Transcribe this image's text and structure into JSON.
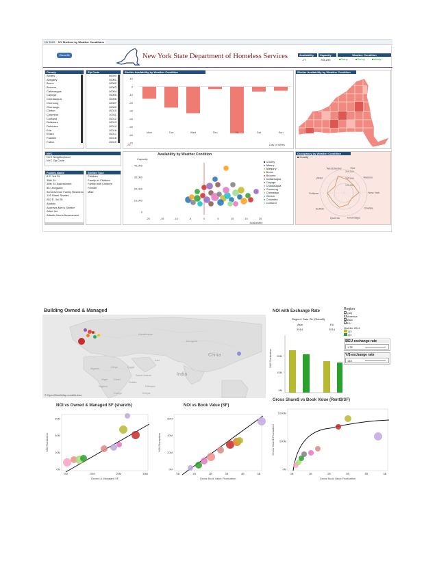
{
  "dash1": {
    "tabs": [
      "NY DHS",
      "NY Shelters by Weather Conditions"
    ],
    "clear_button": "Clear All",
    "title": "New York State Department of Homeless Services",
    "kpi": {
      "availability_label": "Availability",
      "capacity_label": "Capacity",
      "availability_value": "-77",
      "capacity_value": "708,299"
    },
    "weather": {
      "label": "Weather Condition",
      "options": [
        "Rainy",
        "Sunny",
        "Windy"
      ]
    },
    "county_list": {
      "header": "County",
      "items": [
        "Albany",
        "Allegany",
        "Bronx",
        "Broome",
        "Cattaraugus",
        "Cayuga",
        "Chautauqua",
        "Chemung",
        "Chenango",
        "Clinton",
        "Columbia",
        "Cortland",
        "Delaware",
        "Dutchess",
        "Erie",
        "Essex",
        "Franklin",
        "Fulton"
      ]
    },
    "zip_list": {
      "header": "Zip Code",
      "items": [
        "06390",
        "10001",
        "10002",
        "10003",
        "10004",
        "10005",
        "10006",
        "10007",
        "10009",
        "10010",
        "10011",
        "10012",
        "10013",
        "10014",
        "10016",
        "10017",
        "10018",
        "10019"
      ]
    },
    "bar_panel": {
      "header": "Shelter Availability by Weather Condition",
      "x_title": "Day of Week",
      "y_ticks": [
        "10",
        "0",
        "-10",
        "-20",
        "-30",
        "-40",
        "-50",
        "-60",
        "-70"
      ],
      "footnote": "26"
    },
    "map_panel": {
      "header": "Shelter Availability by Weather Condition"
    },
    "nyc_panel": {
      "header": "NYC",
      "items": [
        "NYC Neighborhood",
        "NYC Zip Code"
      ]
    },
    "facility_list": {
      "header": "Facility Name",
      "items": [
        "8 E. 3rd St.",
        "30th St.",
        "30th St. Assessment",
        "85 Livingston",
        "92nd Avenue Family Residence",
        "126 Street Shelter",
        "282 E. 3rd St.",
        "Aladdin",
        "Andrews Men's Shelter",
        "Arbor Inn",
        "Atlantic Men's Assessment"
      ]
    },
    "shelter_type": {
      "header": "Shelter Type",
      "items": [
        "Children",
        "Family w/ Children",
        "Family with Children",
        "Female",
        "Male"
      ]
    },
    "scatter_panel": {
      "title": "Availability by Weather Condition",
      "y_title": "Capacity",
      "x_title": "Availability",
      "y_ticks": [
        "40,000",
        "30,000",
        "20,000",
        "10,000",
        "0"
      ],
      "x_ticks": [
        "-20",
        "-15",
        "-10",
        "-5",
        "0",
        "5",
        "10",
        "15",
        "20"
      ]
    },
    "county_legend": {
      "header": "County",
      "items": [
        "Albany",
        "Allegany",
        "Bronx",
        "Broome",
        "Cattaraugus",
        "Cayuga",
        "Chautauqua",
        "Chemung",
        "Chenango",
        "Clinton",
        "Columbia",
        "Cortland"
      ]
    },
    "occupancy_panel": {
      "header": "Occupancy by Weather Condition",
      "legend": "County",
      "axes": [
        "Erie",
        "Nassau",
        "New York",
        "Oneida",
        "Onondaga",
        "Queens",
        "Suffolk",
        "Sullivan",
        "Ulster",
        "Westchester"
      ],
      "rings": [
        "300,000",
        "200,000",
        "100,000"
      ]
    },
    "colors": {
      "header": "#1f4e79",
      "bar": "#ef7b72",
      "map": "#f08a80",
      "ring": "#c9a06a"
    }
  },
  "dash2": {
    "map_title": "Building Owned & Managed",
    "map_labels": [
      "Kazakhstan",
      "Mongolia",
      "China",
      "India",
      "Algeria",
      "Libya",
      "Egypt",
      "Saudi Arabia",
      "Iran",
      "Niger",
      "Chad",
      "Sudan",
      "Nigeria",
      "Ethiopia",
      "Kenya",
      "Congo"
    ],
    "attribution": "© OpenStreetMap contributors",
    "noi_bar": {
      "title": "NOI with Exchange Rate",
      "subtitle": "Region / Date Ok (Global5)",
      "regions": [
        "Asia",
        "EU"
      ],
      "years": [
        "2014",
        "2014"
      ],
      "y_title": "NOI Fluctuation",
      "y_ticks": [
        "20M",
        "10M",
        "0M"
      ]
    },
    "filters": {
      "region_label": "Region",
      "regions": [
        {
          "name": "(All)",
          "checked": false
        },
        {
          "name": "America",
          "checked": false
        },
        {
          "name": "Asia",
          "checked": true
        },
        {
          "name": "EU",
          "checked": true
        }
      ],
      "quarter_label": "Quarter 2014",
      "quarters": [
        "Q3",
        "Q4"
      ],
      "eu_rate_label": "$/EU exchange rate",
      "eu_rate_value": "1.35",
      "yen_rate_label": "Y/$ exchange rate",
      "yen_rate_value": "148"
    },
    "scatter_a": {
      "title": "NOI vs Owned & Managed SF (share%)",
      "x_title": "Owned & Managed SF",
      "y_title": "NOI Fluctuation",
      "x_ticks": [
        "0M",
        "10M",
        "20M",
        "30M"
      ],
      "y_ticks": [
        "60M",
        "40M",
        "20M",
        "0M"
      ]
    },
    "scatter_b": {
      "title": "NOI vs Book Value (SF)",
      "x_title": "Gross Book Value Fluctuation",
      "y_title": "NOI Fluctuation",
      "x_ticks": [
        "0B",
        "1B",
        "2B",
        "3B",
        "4B",
        "5B"
      ],
      "y_ticks": [
        "60M",
        "40M",
        "20M",
        "0M"
      ]
    },
    "scatter_c": {
      "title": "Gross Share$ vs Book Value (Rent$/SF)",
      "x_title": "Gross Book Value Fluctuation",
      "y_title": "Gross Share$ Fluctuation",
      "x_ticks": [
        "0B",
        "1B",
        "2B",
        "3B",
        "4B",
        "5B"
      ],
      "y_ticks": [
        "1000M",
        "500M",
        "0M"
      ]
    },
    "colors": {
      "q3": "#b7b933",
      "q4": "#2ca02c",
      "accent": "#c72c2c"
    }
  }
}
